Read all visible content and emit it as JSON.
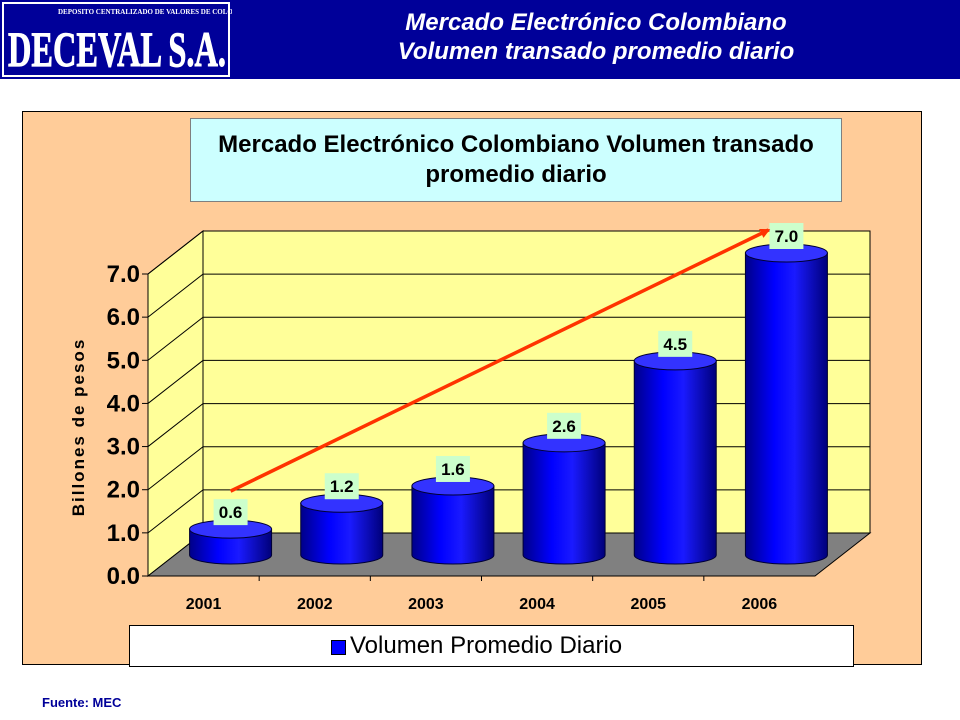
{
  "header": {
    "logo_text": "DECEVAL S.A.",
    "logo_subtitle": "DEPOSITO CENTRALIZADO DE VALORES DE COLOMBIA",
    "title_line1": "Mercado Electrónico Colombiano",
    "title_line2": "Volumen transado promedio diario"
  },
  "footer": {
    "source": "Fuente: MEC"
  },
  "colors": {
    "header_bg": "#000099",
    "chart_bg": "#ffcc99",
    "plot_bg": "#ffff99",
    "floor": "#808080",
    "bar": "#0000ff",
    "trend_arrow": "#ff3300",
    "title_box": "#ccffff",
    "data_label_bg": "#ccffcc"
  },
  "chart_data": {
    "type": "bar",
    "style": "3d-cylinder",
    "title_line1": "Mercado Electrónico Colombiano  Volumen transado",
    "title_line2": "promedio diario",
    "xlabel": "",
    "ylabel": "Billones de pesos",
    "ylim": [
      0,
      7
    ],
    "ytick_step": 1,
    "ytick_labels": [
      "0.0",
      "1.0",
      "2.0",
      "3.0",
      "4.0",
      "5.0",
      "6.0",
      "7.0"
    ],
    "categories": [
      "2001",
      "2002",
      "2003",
      "2004",
      "2005",
      "2006"
    ],
    "series": [
      {
        "name": "Volumen Promedio Diario",
        "values": [
          0.6,
          1.2,
          1.6,
          2.6,
          4.5,
          7.0
        ]
      }
    ],
    "data_labels": [
      "0.6",
      "1.2",
      "1.6",
      "2.6",
      "4.5",
      "7.0"
    ],
    "legend_position": "bottom",
    "grid": true,
    "trend_arrow": {
      "from_category": "2001",
      "to_category": "2006"
    }
  }
}
